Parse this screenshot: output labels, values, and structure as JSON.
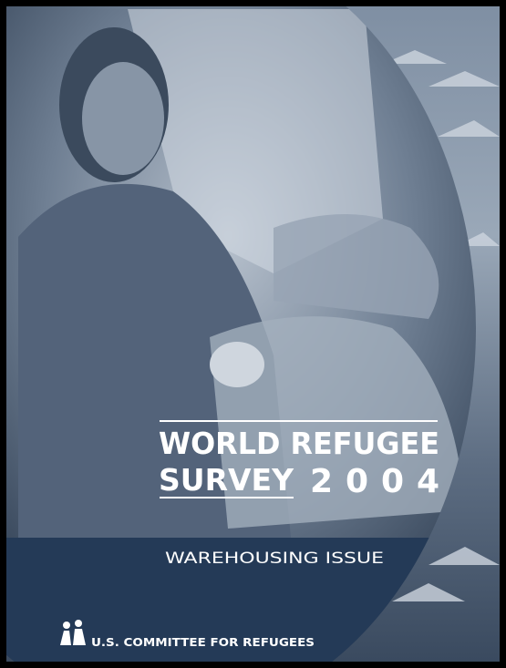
{
  "cover": {
    "title_line1": "WORLD REFUGEE",
    "title_line2": "SURVEY",
    "year": "2004",
    "subtitle": "WAREHOUSING ISSUE",
    "publisher": "U.S. COMMITTEE FOR REFUGEES"
  }
}
